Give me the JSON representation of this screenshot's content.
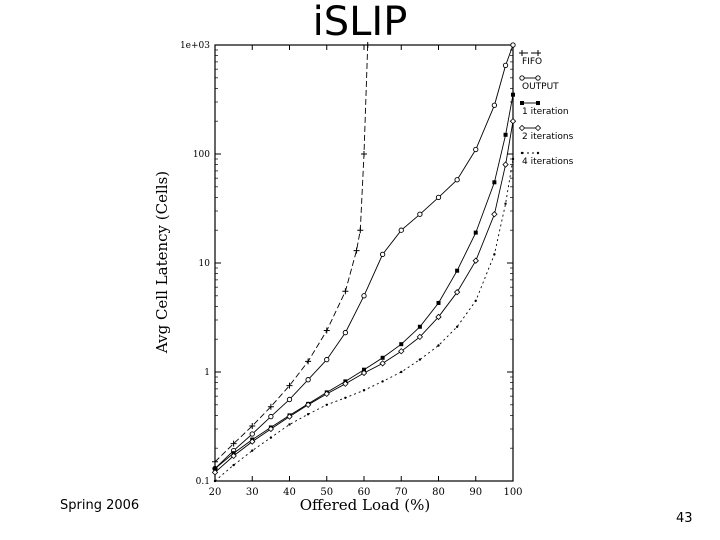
{
  "slide": {
    "title": "iSLIP",
    "footer": "Spring 2006",
    "page_number": "43"
  },
  "chart_data": {
    "type": "line",
    "title": "",
    "xlabel": "Offered Load (%)",
    "ylabel": "Avg Cell Latency (Cells)",
    "xlim": [
      20,
      100
    ],
    "ylim": [
      0.1,
      1000
    ],
    "yscale": "log",
    "xticks": [
      "20",
      "30",
      "40",
      "50",
      "60",
      "70",
      "80",
      "90",
      "100"
    ],
    "yticks": [
      "0.1",
      "1",
      "10",
      "100",
      "1e+03"
    ],
    "grid": false,
    "legend_position": "right",
    "series": [
      {
        "name": "FIFO",
        "marker": "plus",
        "dash": "6,3",
        "x": [
          20,
          25,
          30,
          35,
          40,
          45,
          50,
          55,
          58,
          59,
          60,
          61
        ],
        "y": [
          0.15,
          0.22,
          0.32,
          0.48,
          0.75,
          1.25,
          2.4,
          5.5,
          13,
          20,
          100,
          1000
        ]
      },
      {
        "name": "OUTPUT",
        "marker": "circle",
        "dash": "none",
        "x": [
          20,
          25,
          30,
          35,
          40,
          45,
          50,
          55,
          60,
          65,
          70,
          75,
          80,
          85,
          90,
          95,
          98,
          100
        ],
        "y": [
          0.13,
          0.19,
          0.27,
          0.39,
          0.56,
          0.85,
          1.3,
          2.3,
          5.0,
          12,
          20,
          28,
          40,
          58,
          110,
          280,
          650,
          1000
        ]
      },
      {
        "name": "1 iteration",
        "marker": "square",
        "dash": "none",
        "x": [
          20,
          25,
          30,
          35,
          40,
          45,
          50,
          55,
          60,
          65,
          70,
          75,
          80,
          85,
          90,
          95,
          98,
          100
        ],
        "y": [
          0.13,
          0.18,
          0.24,
          0.31,
          0.4,
          0.51,
          0.65,
          0.82,
          1.05,
          1.35,
          1.8,
          2.6,
          4.3,
          8.5,
          19,
          55,
          150,
          350
        ]
      },
      {
        "name": "2 iterations",
        "marker": "diamond",
        "dash": "none",
        "x": [
          20,
          25,
          30,
          35,
          40,
          45,
          50,
          55,
          60,
          65,
          70,
          75,
          80,
          85,
          90,
          95,
          98,
          100
        ],
        "y": [
          0.12,
          0.17,
          0.23,
          0.3,
          0.39,
          0.5,
          0.63,
          0.78,
          0.98,
          1.2,
          1.55,
          2.1,
          3.2,
          5.4,
          10.5,
          28,
          80,
          200
        ]
      },
      {
        "name": "4 iterations",
        "marker": "dot",
        "dash": "2,3",
        "x": [
          20,
          25,
          30,
          35,
          40,
          45,
          50,
          55,
          60,
          65,
          70,
          75,
          80,
          85,
          90,
          95,
          98,
          100
        ],
        "y": [
          0.1,
          0.14,
          0.19,
          0.25,
          0.33,
          0.41,
          0.5,
          0.58,
          0.68,
          0.82,
          1.0,
          1.3,
          1.75,
          2.6,
          4.5,
          12,
          35,
          90
        ]
      }
    ]
  }
}
